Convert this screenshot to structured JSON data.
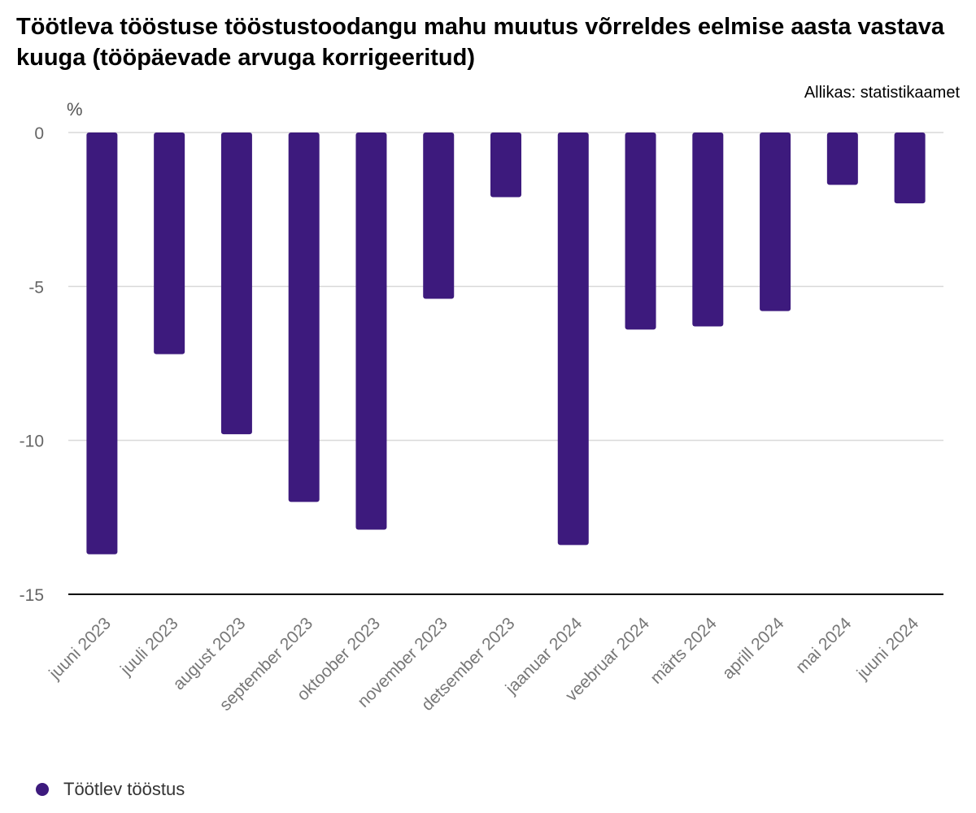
{
  "chart_data": {
    "type": "bar",
    "title": "Töötleva tööstuse tööstustoodangu mahu muutus võrreldes eelmise aasta vastava kuuga (tööpäevade arvuga korrigeeritud)",
    "source": "Allikas: statistikaamet",
    "ylabel": "%",
    "xlabel": "",
    "ylim": [
      -15,
      0
    ],
    "yticks": [
      0,
      -5,
      -10,
      -15
    ],
    "grid": true,
    "legend_position": "bottom-left",
    "categories": [
      "juuni 2023",
      "juuli 2023",
      "august 2023",
      "september 2023",
      "oktoober 2023",
      "november 2023",
      "detsember 2023",
      "jaanuar 2024",
      "veebruar 2024",
      "märts 2024",
      "aprill 2024",
      "mai 2024",
      "juuni 2024"
    ],
    "series": [
      {
        "name": "Töötlev tööstus",
        "color": "#3d1a7d",
        "values": [
          -13.7,
          -7.2,
          -9.8,
          -12.0,
          -12.9,
          -5.4,
          -2.1,
          -13.4,
          -6.4,
          -6.3,
          -5.8,
          -1.7,
          -2.3
        ]
      }
    ]
  }
}
